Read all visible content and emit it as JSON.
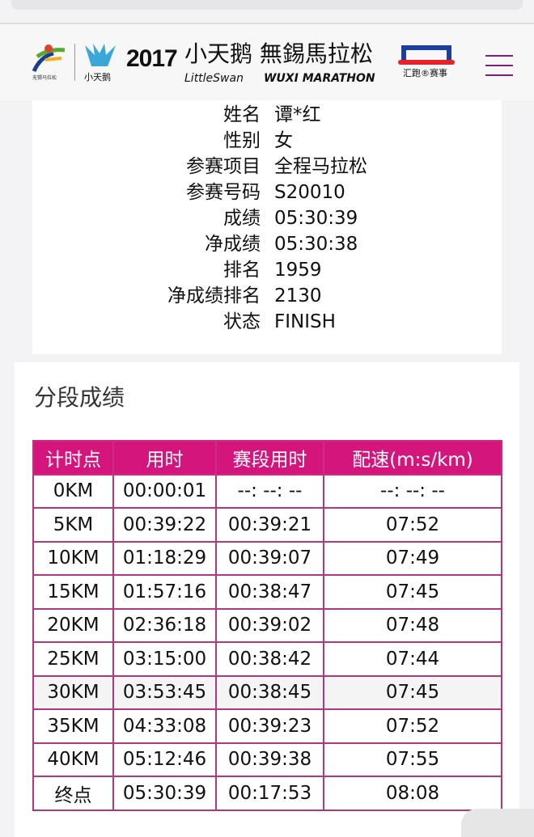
{
  "header": {
    "logo_sub": "无锡马拉松",
    "swan_label": "小天鹅",
    "year": "2017",
    "title_cn": "小天鹅 無錫馬拉松",
    "title_en_brand": "LittleSwan",
    "title_en_event": "WUXI MARATHON",
    "partner": "汇跑®赛事",
    "menu_icon": "hamburger-menu-icon"
  },
  "runner": [
    {
      "label": "姓名",
      "value": "谭*红"
    },
    {
      "label": "性别",
      "value": "女"
    },
    {
      "label": "参赛项目",
      "value": "全程马拉松"
    },
    {
      "label": "参赛号码",
      "value": "S20010"
    },
    {
      "label": "成绩",
      "value": "05:30:39"
    },
    {
      "label": "净成绩",
      "value": "05:30:38"
    },
    {
      "label": "排名",
      "value": "1959"
    },
    {
      "label": "净成绩排名",
      "value": "2130"
    },
    {
      "label": "状态",
      "value": "FINISH"
    }
  ],
  "splits": {
    "title": "分段成绩",
    "columns": [
      "计时点",
      "用时",
      "赛段用时",
      "配速(m:s/km)"
    ],
    "rows": [
      [
        "0KM",
        "00:00:01",
        "--:  --:  --",
        "--:  --:  --"
      ],
      [
        "5KM",
        "00:39:22",
        "00:39:21",
        "07:52"
      ],
      [
        "10KM",
        "01:18:29",
        "00:39:07",
        "07:49"
      ],
      [
        "15KM",
        "01:57:16",
        "00:38:47",
        "07:45"
      ],
      [
        "20KM",
        "02:36:18",
        "00:39:02",
        "07:48"
      ],
      [
        "25KM",
        "03:15:00",
        "00:38:42",
        "07:44"
      ],
      [
        "30KM",
        "03:53:45",
        "00:38:45",
        "07:45"
      ],
      [
        "35KM",
        "04:33:08",
        "00:39:23",
        "07:52"
      ],
      [
        "40KM",
        "05:12:46",
        "00:39:38",
        "07:55"
      ],
      [
        "终点",
        "05:30:39",
        "00:17:53",
        "08:08"
      ]
    ]
  },
  "colors": {
    "accent": "#d4157c",
    "border": "#b4367f",
    "menu": "#7a1f7a"
  }
}
